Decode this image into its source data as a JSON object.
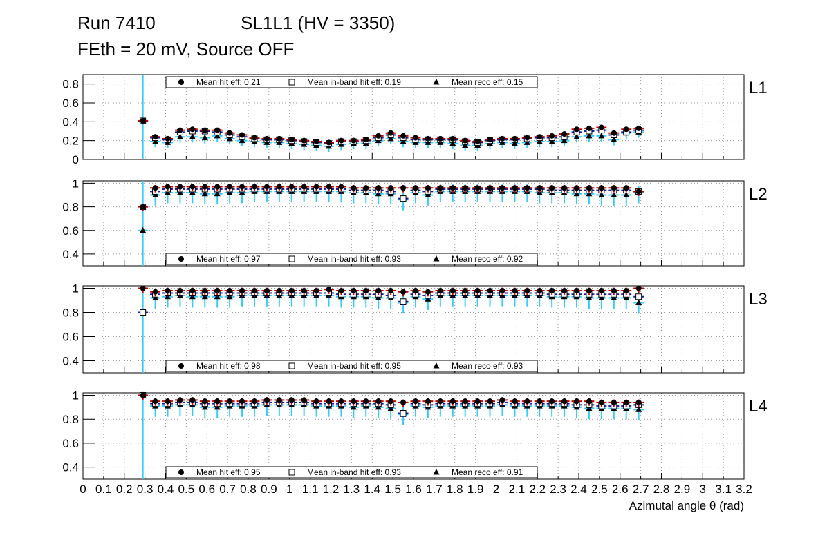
{
  "header": {
    "run": "Run 7410",
    "chamber": "SL1L1 (HV = 3350)",
    "conditions": "FEth = 20 mV, Source OFF"
  },
  "chart_data": {
    "type": "scatter",
    "xlabel": "Azimutal angle θ (rad)",
    "xlim": [
      0,
      3.2
    ],
    "x_ticks": [
      0,
      0.1,
      0.2,
      0.3,
      0.4,
      0.5,
      0.6,
      0.7,
      0.8,
      0.9,
      1,
      1.1,
      1.2,
      1.3,
      1.4,
      1.5,
      1.6,
      1.7,
      1.8,
      1.9,
      2,
      2.1,
      2.2,
      2.3,
      2.4,
      2.5,
      2.6,
      2.7,
      2.8,
      2.9,
      3,
      3.1,
      3.2
    ],
    "x_tick_labels": [
      "0",
      "0.1",
      "0.2",
      "0.3",
      "0.4",
      "0.5",
      "0.6",
      "0.7",
      "0.8",
      "0.9",
      "1",
      "1.1",
      "1.2",
      "1.3",
      "1.4",
      "1.5",
      "1.6",
      "1.7",
      "1.8",
      "1.9",
      "2",
      "2.1",
      "2.2",
      "2.3",
      "2.4",
      "2.5",
      "2.6",
      "2.7",
      "2.8",
      "2.9",
      "3",
      "3.1",
      "3.2"
    ],
    "x": [
      0.29,
      0.35,
      0.41,
      0.47,
      0.53,
      0.59,
      0.65,
      0.71,
      0.77,
      0.83,
      0.89,
      0.95,
      1.01,
      1.07,
      1.13,
      1.19,
      1.25,
      1.31,
      1.37,
      1.43,
      1.49,
      1.55,
      1.61,
      1.67,
      1.73,
      1.79,
      1.85,
      1.91,
      1.97,
      2.03,
      2.09,
      2.15,
      2.21,
      2.27,
      2.33,
      2.39,
      2.45,
      2.51,
      2.57,
      2.63,
      2.69
    ],
    "series_names": [
      "Mean hit  eff",
      "Mean in-band hit eff",
      "Mean reco eff"
    ],
    "panels": [
      {
        "label": "L1",
        "ylim": [
          0,
          0.9
        ],
        "y_ticks": [
          0,
          0.2,
          0.4,
          0.6,
          0.8
        ],
        "y_tick_labels": [
          "0",
          "0.2",
          "0.4",
          "0.6",
          "0.8"
        ],
        "legend_position": "top",
        "legend": [
          "Mean hit  eff: 0.21",
          "Mean in-band hit eff: 0.19",
          "Mean reco eff: 0.15"
        ],
        "hit": [
          0.41,
          0.24,
          0.22,
          0.31,
          0.32,
          0.31,
          0.31,
          0.28,
          0.26,
          0.23,
          0.22,
          0.22,
          0.21,
          0.2,
          0.19,
          0.18,
          0.2,
          0.2,
          0.21,
          0.25,
          0.28,
          0.25,
          0.23,
          0.22,
          0.22,
          0.22,
          0.2,
          0.19,
          0.21,
          0.22,
          0.22,
          0.23,
          0.24,
          0.25,
          0.27,
          0.32,
          0.33,
          0.34,
          0.28,
          0.32,
          0.33
        ],
        "inband": [
          0.41,
          0.23,
          0.21,
          0.29,
          0.3,
          0.3,
          0.29,
          0.26,
          0.24,
          0.22,
          0.21,
          0.21,
          0.2,
          0.19,
          0.18,
          0.17,
          0.19,
          0.19,
          0.2,
          0.23,
          0.26,
          0.23,
          0.21,
          0.21,
          0.21,
          0.21,
          0.19,
          0.18,
          0.2,
          0.21,
          0.21,
          0.22,
          0.23,
          0.23,
          0.24,
          0.29,
          0.3,
          0.31,
          0.26,
          0.29,
          0.31
        ],
        "reco": [
          0.4,
          0.19,
          0.18,
          0.24,
          0.24,
          0.23,
          0.25,
          0.22,
          0.2,
          0.19,
          0.18,
          0.18,
          0.17,
          0.16,
          0.15,
          0.14,
          0.16,
          0.17,
          0.17,
          0.2,
          0.22,
          0.19,
          0.18,
          0.18,
          0.18,
          0.17,
          0.15,
          0.15,
          0.17,
          0.18,
          0.17,
          0.18,
          0.19,
          0.19,
          0.2,
          0.24,
          0.25,
          0.25,
          0.21,
          0.28,
          0.29
        ]
      },
      {
        "label": "L2",
        "ylim": [
          0.3,
          1.02
        ],
        "y_ticks": [
          0.4,
          0.6,
          0.8,
          1
        ],
        "y_tick_labels": [
          "0.4",
          "0.6",
          "0.8",
          "1"
        ],
        "legend_position": "bottom",
        "legend": [
          "Mean hit  eff: 0.97",
          "Mean in-band hit eff: 0.93",
          "Mean reco eff: 0.92"
        ],
        "hit": [
          0.8,
          0.96,
          0.97,
          0.97,
          0.97,
          0.97,
          0.97,
          0.97,
          0.97,
          0.97,
          0.97,
          0.97,
          0.97,
          0.97,
          0.97,
          0.97,
          0.97,
          0.96,
          0.96,
          0.96,
          0.96,
          0.96,
          0.96,
          0.96,
          0.96,
          0.96,
          0.96,
          0.96,
          0.96,
          0.96,
          0.96,
          0.96,
          0.96,
          0.96,
          0.96,
          0.96,
          0.96,
          0.96,
          0.96,
          0.96,
          0.93
        ],
        "inband": [
          0.8,
          0.93,
          0.95,
          0.95,
          0.95,
          0.95,
          0.95,
          0.95,
          0.95,
          0.95,
          0.95,
          0.95,
          0.95,
          0.95,
          0.95,
          0.95,
          0.95,
          0.94,
          0.94,
          0.94,
          0.93,
          0.87,
          0.94,
          0.93,
          0.95,
          0.95,
          0.95,
          0.95,
          0.95,
          0.95,
          0.95,
          0.95,
          0.95,
          0.94,
          0.94,
          0.94,
          0.94,
          0.94,
          0.94,
          0.94,
          0.93
        ],
        "reco": [
          0.6,
          0.9,
          0.92,
          0.92,
          0.92,
          0.91,
          0.91,
          0.92,
          0.92,
          0.93,
          0.93,
          0.93,
          0.93,
          0.93,
          0.93,
          0.93,
          0.93,
          0.92,
          0.92,
          0.91,
          0.91,
          0.86,
          0.92,
          0.9,
          0.93,
          0.93,
          0.93,
          0.93,
          0.93,
          0.93,
          0.93,
          0.93,
          0.92,
          0.92,
          0.92,
          0.91,
          0.91,
          0.9,
          0.9,
          0.9,
          0.92
        ]
      },
      {
        "label": "L3",
        "ylim": [
          0.3,
          1.02
        ],
        "y_ticks": [
          0.4,
          0.6,
          0.8,
          1
        ],
        "y_tick_labels": [
          "0.4",
          "0.6",
          "0.8",
          "1"
        ],
        "legend_position": "bottom",
        "legend": [
          "Mean hit  eff: 0.98",
          "Mean in-band hit eff: 0.95",
          "Mean reco eff: 0.93"
        ],
        "hit": [
          1.0,
          0.97,
          0.98,
          0.98,
          0.98,
          0.98,
          0.98,
          0.98,
          0.98,
          0.98,
          0.98,
          0.98,
          0.98,
          0.98,
          0.98,
          0.99,
          0.98,
          0.98,
          0.98,
          0.98,
          0.98,
          0.97,
          0.98,
          0.97,
          0.98,
          0.98,
          0.98,
          0.98,
          0.98,
          0.98,
          0.98,
          0.98,
          0.98,
          0.98,
          0.98,
          0.98,
          0.98,
          0.98,
          0.98,
          0.98,
          1.0
        ],
        "inband": [
          0.8,
          0.95,
          0.96,
          0.96,
          0.96,
          0.96,
          0.96,
          0.96,
          0.96,
          0.96,
          0.96,
          0.96,
          0.96,
          0.96,
          0.96,
          0.96,
          0.95,
          0.95,
          0.95,
          0.95,
          0.94,
          0.89,
          0.95,
          0.94,
          0.96,
          0.96,
          0.96,
          0.96,
          0.96,
          0.96,
          0.96,
          0.96,
          0.96,
          0.95,
          0.95,
          0.95,
          0.95,
          0.95,
          0.95,
          0.95,
          0.93
        ],
        "reco": [
          0.8,
          0.92,
          0.93,
          0.94,
          0.93,
          0.93,
          0.93,
          0.93,
          0.94,
          0.94,
          0.94,
          0.94,
          0.94,
          0.94,
          0.94,
          0.94,
          0.93,
          0.93,
          0.93,
          0.92,
          0.92,
          0.88,
          0.93,
          0.91,
          0.94,
          0.94,
          0.94,
          0.94,
          0.94,
          0.94,
          0.94,
          0.94,
          0.94,
          0.93,
          0.93,
          0.93,
          0.92,
          0.92,
          0.92,
          0.92,
          0.88
        ]
      },
      {
        "label": "L4",
        "ylim": [
          0.3,
          1.02
        ],
        "y_ticks": [
          0.4,
          0.6,
          0.8,
          1
        ],
        "y_tick_labels": [
          "0.4",
          "0.6",
          "0.8",
          "1"
        ],
        "legend_position": "bottom",
        "legend": [
          "Mean hit  eff: 0.95",
          "Mean in-band hit eff: 0.93",
          "Mean reco eff: 0.91"
        ],
        "hit": [
          1.0,
          0.95,
          0.95,
          0.96,
          0.96,
          0.95,
          0.95,
          0.95,
          0.95,
          0.95,
          0.96,
          0.96,
          0.96,
          0.96,
          0.95,
          0.95,
          0.95,
          0.95,
          0.95,
          0.95,
          0.95,
          0.94,
          0.95,
          0.95,
          0.95,
          0.95,
          0.95,
          0.95,
          0.95,
          0.96,
          0.95,
          0.95,
          0.95,
          0.95,
          0.95,
          0.95,
          0.95,
          0.94,
          0.94,
          0.94,
          0.94
        ],
        "inband": [
          1.0,
          0.93,
          0.93,
          0.94,
          0.94,
          0.93,
          0.93,
          0.93,
          0.93,
          0.93,
          0.94,
          0.94,
          0.94,
          0.94,
          0.93,
          0.93,
          0.93,
          0.93,
          0.93,
          0.93,
          0.92,
          0.85,
          0.93,
          0.92,
          0.93,
          0.93,
          0.93,
          0.93,
          0.93,
          0.94,
          0.93,
          0.93,
          0.93,
          0.93,
          0.93,
          0.92,
          0.92,
          0.91,
          0.91,
          0.91,
          0.92
        ],
        "reco": [
          1.0,
          0.91,
          0.91,
          0.92,
          0.92,
          0.9,
          0.9,
          0.91,
          0.91,
          0.91,
          0.92,
          0.92,
          0.92,
          0.92,
          0.91,
          0.91,
          0.91,
          0.9,
          0.91,
          0.9,
          0.89,
          0.84,
          0.91,
          0.9,
          0.91,
          0.91,
          0.91,
          0.91,
          0.91,
          0.92,
          0.91,
          0.91,
          0.91,
          0.91,
          0.91,
          0.9,
          0.89,
          0.89,
          0.89,
          0.89,
          0.88
        ]
      }
    ]
  },
  "colors": {
    "hit_line": "#cc0000",
    "inband_line": "#1a1aa6",
    "reco_line": "#33ccff",
    "frame": "#000000",
    "grid": "#9a9a9a"
  }
}
